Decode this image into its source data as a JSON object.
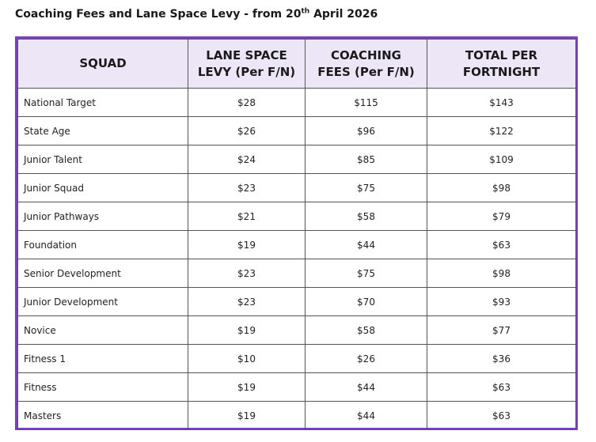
{
  "title": {
    "prefix": "Coaching Fees and Lane Space Levy - from 20",
    "superscript": "th",
    "suffix": " April 2026"
  },
  "table": {
    "headers": [
      [
        "SQUAD"
      ],
      [
        "LANE SPACE",
        "LEVY (Per F/N)"
      ],
      [
        "COACHING",
        "FEES (Per F/N)"
      ],
      [
        "TOTAL PER",
        "FORTNIGHT"
      ]
    ],
    "rows": [
      [
        "National Target",
        "$28",
        "$115",
        "$143"
      ],
      [
        "State Age",
        "$26",
        "$96",
        "$122"
      ],
      [
        "Junior Talent",
        "$24",
        "$85",
        "$109"
      ],
      [
        "Junior Squad",
        "$23",
        "$75",
        "$98"
      ],
      [
        "Junior Pathways",
        "$21",
        "$58",
        "$79"
      ],
      [
        "Foundation",
        "$19",
        "$44",
        "$63"
      ],
      [
        "Senior Development",
        "$23",
        "$75",
        "$98"
      ],
      [
        "Junior Development",
        "$23",
        "$70",
        "$93"
      ],
      [
        "Novice",
        "$19",
        "$58",
        "$77"
      ],
      [
        "Fitness 1",
        "$10",
        "$26",
        "$36"
      ],
      [
        "Fitness",
        "$19",
        "$44",
        "$63"
      ],
      [
        "Masters",
        "$19",
        "$44",
        "$63"
      ]
    ]
  },
  "colors": {
    "border_accent": "#7b3fc4",
    "header_bg": "#ede6f7"
  }
}
